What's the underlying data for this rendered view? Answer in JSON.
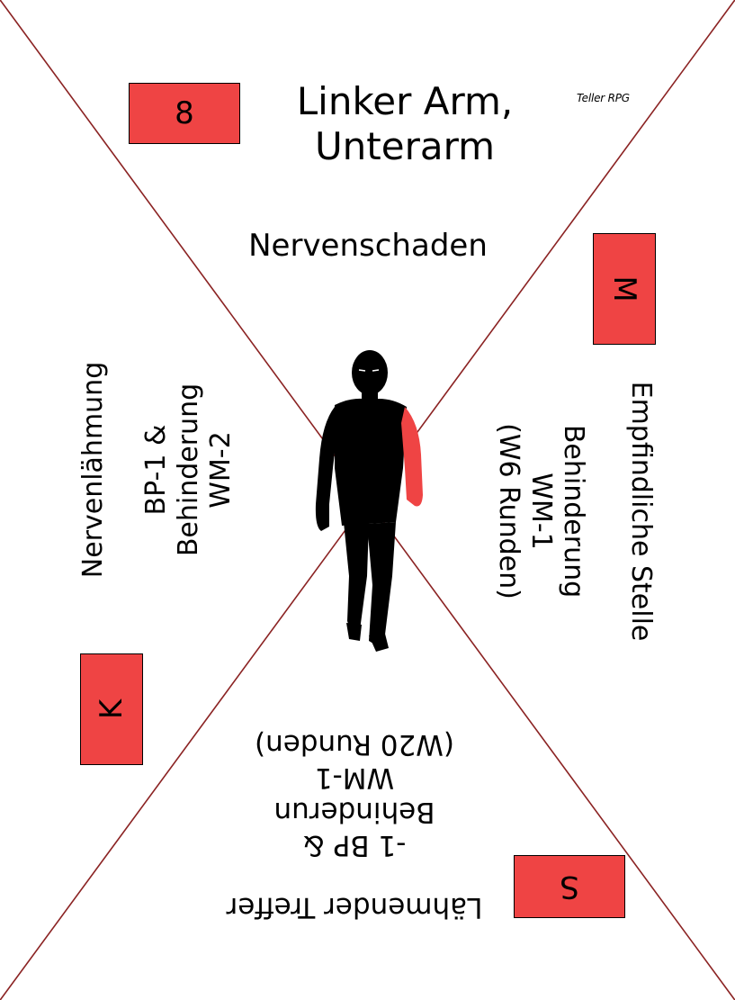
{
  "card": {
    "brand": "Teller RPG",
    "body_part_line1": "Linker Arm,",
    "body_part_line2": "Unterarm"
  },
  "corners": {
    "top": "8",
    "right": "M",
    "bottom": "S",
    "left": "K"
  },
  "sections": {
    "top": {
      "name": "Nervenschaden"
    },
    "right": {
      "name": "Empfindliche Stelle",
      "effect_1": "Behinderung",
      "effect_2": "WM-1",
      "effect_3": "(W6 Runden)"
    },
    "bottom": {
      "name": "Lähmender Treffer",
      "effect_1": "-1 BP &",
      "effect_2": "Behinderun",
      "effect_3": "WM-1",
      "effect_4": "(W20 Runden)"
    },
    "left": {
      "name": "Nervenlähmung",
      "effect_1": "BP-1 &",
      "effect_2": "Behinderung",
      "effect_3": "WM-2"
    }
  },
  "colors": {
    "accent": "#ef4444",
    "diagonal": "#8b2323",
    "silhouette": "#000000"
  },
  "icons": {
    "figure": "walking-figure-silhouette-icon"
  }
}
